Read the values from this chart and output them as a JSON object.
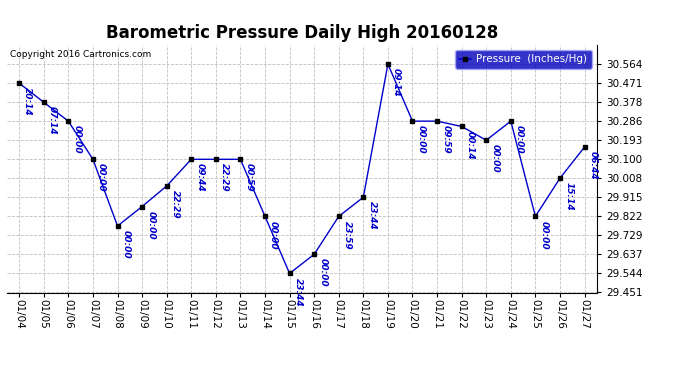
{
  "title": "Barometric Pressure Daily High 20160128",
  "copyright": "Copyright 2016 Cartronics.com",
  "legend_label": "Pressure  (Inches/Hg)",
  "background_color": "#ffffff",
  "grid_color": "#c0c0c0",
  "line_color": "#0000cc",
  "marker_color": "#000000",
  "annotation_color": "#0000cc",
  "dates": [
    "01/04",
    "01/05",
    "01/06",
    "01/07",
    "01/08",
    "01/09",
    "01/10",
    "01/11",
    "01/12",
    "01/13",
    "01/14",
    "01/15",
    "01/16",
    "01/17",
    "01/18",
    "01/19",
    "01/20",
    "01/21",
    "01/22",
    "01/23",
    "01/24",
    "01/25",
    "01/26",
    "01/27"
  ],
  "values": [
    30.471,
    30.378,
    30.286,
    30.1,
    29.775,
    29.87,
    29.97,
    30.1,
    30.1,
    30.1,
    29.822,
    29.544,
    29.637,
    29.822,
    29.915,
    30.564,
    30.286,
    30.286,
    30.26,
    30.193,
    30.286,
    29.822,
    30.008,
    30.16
  ],
  "annotations": [
    "20:14",
    "07:14",
    "00:00",
    "00:00",
    "00:00",
    "00:00",
    "22:29",
    "09:44",
    "22:29",
    "00:59",
    "00:00",
    "23:44",
    "00:00",
    "23:59",
    "23:44",
    "09:14",
    "00:00",
    "09:59",
    "00:14",
    "00:00",
    "00:00",
    "00:00",
    "15:14",
    "06:44"
  ],
  "ylim_min": 29.451,
  "ylim_max": 30.657,
  "yticks": [
    29.451,
    29.544,
    29.637,
    29.729,
    29.822,
    29.915,
    30.008,
    30.1,
    30.193,
    30.286,
    30.378,
    30.471,
    30.564
  ],
  "title_fontsize": 12,
  "annotation_fontsize": 6.5,
  "tick_fontsize": 7.5,
  "legend_fontsize": 7.5
}
